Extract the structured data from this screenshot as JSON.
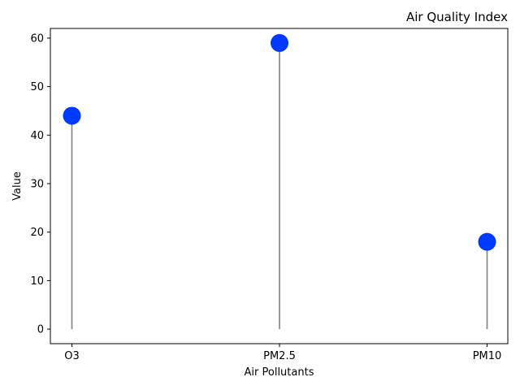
{
  "chart_data": {
    "type": "lollipop",
    "title": "Air Quality Index",
    "xlabel": "Air Pollutants",
    "ylabel": "Value",
    "categories": [
      "O3",
      "PM2.5",
      "PM10"
    ],
    "values": [
      44,
      59,
      18
    ],
    "ylim": [
      -3,
      62
    ],
    "yticks": [
      0,
      10,
      20,
      30,
      40,
      50,
      60
    ],
    "grid": false,
    "legend": "none",
    "colors": {
      "marker": "#0039ff",
      "stem": "#808080",
      "axis": "#000000"
    }
  }
}
